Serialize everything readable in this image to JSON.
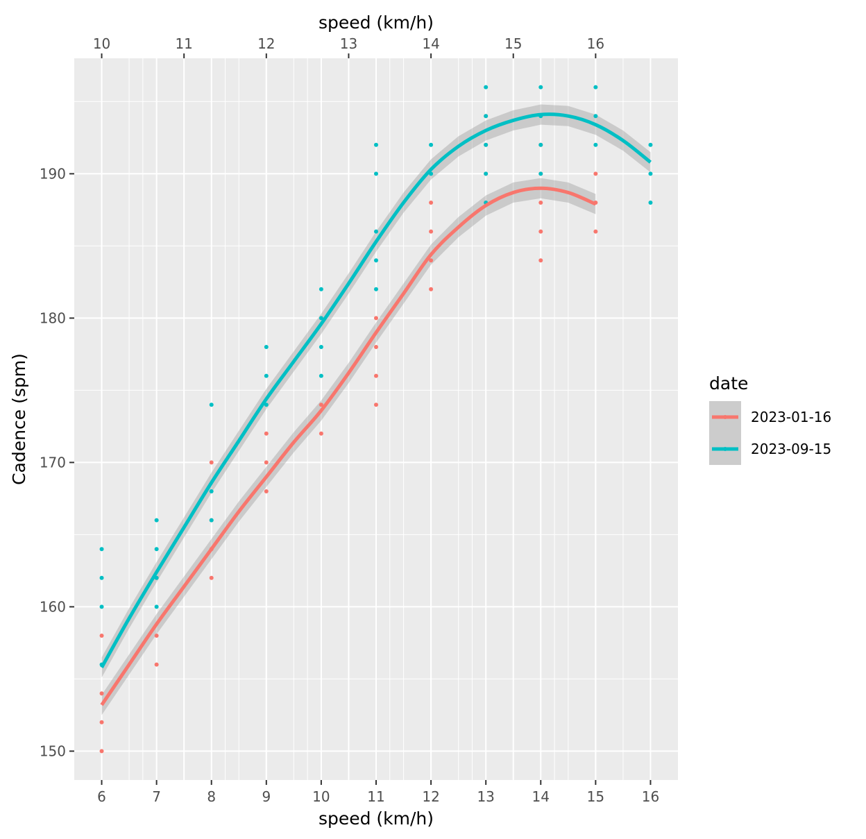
{
  "chart_data": {
    "type": "scatter",
    "x_bottom": {
      "label": "speed (km/h)",
      "ticks": [
        6,
        7,
        8,
        9,
        10,
        11,
        12,
        13,
        14,
        15,
        16
      ],
      "range": [
        5.5,
        16.5
      ]
    },
    "x_top": {
      "label": "speed (km/h)",
      "ticks": [
        10,
        11,
        12,
        13,
        14,
        15,
        16
      ],
      "note": "secondary axis; top value = 10 + (bottom - 6) * 2/3"
    },
    "y": {
      "label": "Cadence (spm)",
      "ticks": [
        150,
        160,
        170,
        180,
        190
      ],
      "range": [
        148,
        198
      ]
    },
    "grid": true,
    "legend": {
      "title": "date",
      "position": "right",
      "entries": [
        "2023-01-16",
        "2023-09-15"
      ]
    },
    "series": [
      {
        "name": "2023-01-16",
        "color": "#F8766D",
        "points": [
          [
            6,
            158
          ],
          [
            6,
            154
          ],
          [
            6,
            152
          ],
          [
            6,
            150
          ],
          [
            7,
            162
          ],
          [
            7,
            158
          ],
          [
            7,
            156
          ],
          [
            8,
            170
          ],
          [
            8,
            166
          ],
          [
            8,
            164
          ],
          [
            8,
            162
          ],
          [
            9,
            172
          ],
          [
            9,
            170
          ],
          [
            9,
            168
          ],
          [
            10,
            174
          ],
          [
            10,
            172
          ],
          [
            11,
            180
          ],
          [
            11,
            178
          ],
          [
            11,
            176
          ],
          [
            11,
            174
          ],
          [
            12,
            188
          ],
          [
            12,
            186
          ],
          [
            12,
            184
          ],
          [
            12,
            182
          ],
          [
            13,
            194
          ],
          [
            13,
            192
          ],
          [
            13,
            190
          ],
          [
            13,
            188
          ],
          [
            14,
            192
          ],
          [
            14,
            190
          ],
          [
            14,
            188
          ],
          [
            14,
            186
          ],
          [
            14,
            184
          ],
          [
            15,
            190
          ],
          [
            15,
            188
          ],
          [
            15,
            186
          ]
        ],
        "smooth": [
          [
            6,
            153.2
          ],
          [
            6.5,
            156.0
          ],
          [
            7,
            158.8
          ],
          [
            7.5,
            161.4
          ],
          [
            8,
            164.0
          ],
          [
            8.5,
            166.6
          ],
          [
            9,
            169.0
          ],
          [
            9.5,
            171.4
          ],
          [
            10,
            173.6
          ],
          [
            10.5,
            176.2
          ],
          [
            11,
            179.0
          ],
          [
            11.5,
            181.7
          ],
          [
            12,
            184.4
          ],
          [
            12.5,
            186.3
          ],
          [
            13,
            187.8
          ],
          [
            13.5,
            188.7
          ],
          [
            14,
            189.0
          ],
          [
            14.5,
            188.7
          ],
          [
            15,
            187.9
          ]
        ]
      },
      {
        "name": "2023-09-15",
        "color": "#00BFC4",
        "points": [
          [
            6,
            164
          ],
          [
            6,
            162
          ],
          [
            6,
            160
          ],
          [
            6,
            156
          ],
          [
            7,
            166
          ],
          [
            7,
            164
          ],
          [
            7,
            162
          ],
          [
            7,
            160
          ],
          [
            8,
            174
          ],
          [
            8,
            168
          ],
          [
            8,
            166
          ],
          [
            9,
            178
          ],
          [
            9,
            176
          ],
          [
            9,
            174
          ],
          [
            10,
            182
          ],
          [
            10,
            180
          ],
          [
            10,
            178
          ],
          [
            10,
            176
          ],
          [
            11,
            192
          ],
          [
            11,
            190
          ],
          [
            11,
            186
          ],
          [
            11,
            184
          ],
          [
            11,
            182
          ],
          [
            12,
            192
          ],
          [
            12,
            190
          ],
          [
            13,
            196
          ],
          [
            13,
            194
          ],
          [
            13,
            192
          ],
          [
            13,
            190
          ],
          [
            13,
            188
          ],
          [
            14,
            196
          ],
          [
            14,
            194
          ],
          [
            14,
            192
          ],
          [
            14,
            190
          ],
          [
            15,
            196
          ],
          [
            15,
            194
          ],
          [
            15,
            192
          ],
          [
            16,
            192
          ],
          [
            16,
            190
          ],
          [
            16,
            188
          ]
        ],
        "smooth": [
          [
            6,
            155.8
          ],
          [
            6.5,
            159.2
          ],
          [
            7,
            162.4
          ],
          [
            7.5,
            165.5
          ],
          [
            8,
            168.6
          ],
          [
            8.5,
            171.5
          ],
          [
            9,
            174.4
          ],
          [
            9.5,
            177.0
          ],
          [
            10,
            179.6
          ],
          [
            10.5,
            182.4
          ],
          [
            11,
            185.3
          ],
          [
            11.5,
            188.0
          ],
          [
            12,
            190.3
          ],
          [
            12.5,
            191.9
          ],
          [
            13,
            193.0
          ],
          [
            13.5,
            193.7
          ],
          [
            14,
            194.1
          ],
          [
            14.5,
            194.0
          ],
          [
            15,
            193.4
          ],
          [
            15.5,
            192.3
          ],
          [
            16,
            190.8
          ]
        ]
      }
    ]
  }
}
